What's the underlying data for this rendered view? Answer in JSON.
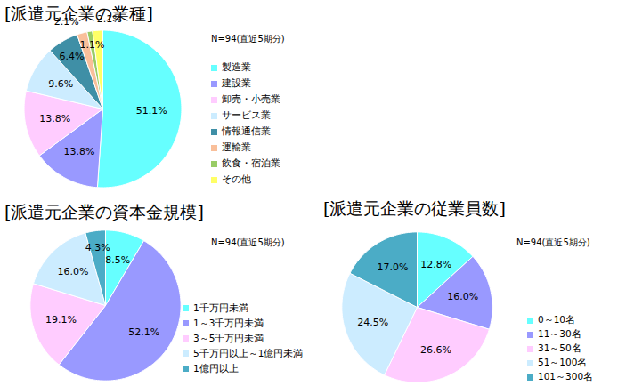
{
  "chart_data": [
    {
      "type": "pie",
      "title": "[派遣元企業の業種]",
      "subtitle": "N=94(直近5期分)",
      "categories": [
        "製造業",
        "建設業",
        "卸売・小売業",
        "サービス業",
        "情報通信業",
        "運輸業",
        "飲食・宿泊業",
        "その他"
      ],
      "values": [
        51.1,
        13.8,
        13.8,
        9.6,
        6.4,
        2.1,
        1.1,
        2.1
      ],
      "value_labels": [
        "51.1%",
        "13.8%",
        "13.8%",
        "9.6%",
        "6.4%",
        "2.1%",
        "1.1%",
        "2.1%"
      ],
      "colors": [
        "#66FFFF",
        "#9999FF",
        "#FFCCFF",
        "#CCECFF",
        "#3F8FA6",
        "#F9BF9A",
        "#99CC66",
        "#FFFF66"
      ],
      "data_labels": true,
      "legend": "right"
    },
    {
      "type": "pie",
      "title": "[派遣元企業の資本金規模]",
      "subtitle": "N=94(直近5期分)",
      "categories": [
        "1千万円未満",
        "1～3千万円未満",
        "3～5千万円未満",
        "5千万円以上～1億円未満",
        "1億円以上"
      ],
      "values": [
        8.5,
        52.1,
        19.1,
        16.0,
        4.3
      ],
      "value_labels": [
        "8.5%",
        "52.1%",
        "19.1%",
        "16.0%",
        "4.3%"
      ],
      "colors": [
        "#66FFFF",
        "#9999FF",
        "#FFCCFF",
        "#CCECFF",
        "#4BACC6"
      ],
      "data_labels": true,
      "legend": "right"
    },
    {
      "type": "pie",
      "title": "[派遣元企業の従業員数]",
      "subtitle": "N=94(直近5期分)",
      "categories": [
        "0～10名",
        "11～30名",
        "31～50名",
        "51～100名",
        "101～300名"
      ],
      "values": [
        12.8,
        16.0,
        26.6,
        24.5,
        17.0
      ],
      "value_labels": [
        "12.8%",
        "16.0%",
        "26.6%",
        "24.5%",
        "17.0%"
      ],
      "colors": [
        "#66FFFF",
        "#9999FF",
        "#FFCCFF",
        "#CCECFF",
        "#4BACC6"
      ],
      "data_labels": true,
      "legend": "right"
    }
  ]
}
